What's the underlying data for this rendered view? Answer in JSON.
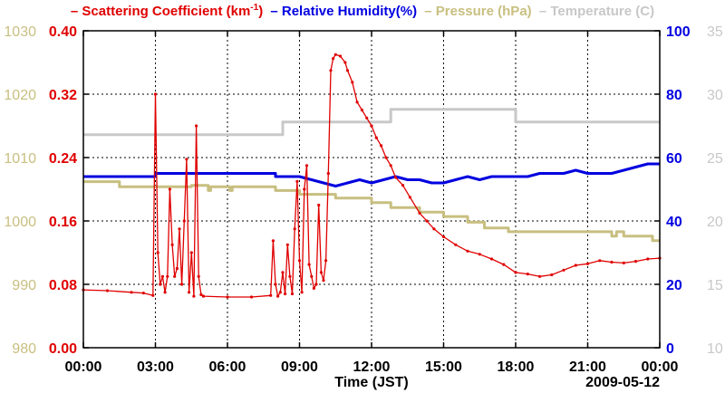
{
  "legend": {
    "scattering": "– Scattering Coefficient (km",
    "scattering_sup": "-1",
    "scattering_end": ")",
    "humidity": "– Relative Humidity(%)",
    "pressure": "– Pressure (hPa)",
    "temperature": "– Temperature (C)"
  },
  "chart_data": {
    "type": "line",
    "title": "",
    "xlabel": "Time (JST)",
    "date_label": "2009-05-12",
    "x_ticks": [
      "00:00",
      "03:00",
      "06:00",
      "09:00",
      "12:00",
      "15:00",
      "18:00",
      "21:00",
      "00:00"
    ],
    "xlim_hours": [
      0,
      24
    ],
    "axes": {
      "scattering": {
        "ylim": [
          0,
          0.4
        ],
        "ticks": [
          "0.00",
          "0.08",
          "0.16",
          "0.24",
          "0.32",
          "0.40"
        ],
        "color": "#e00000"
      },
      "pressure": {
        "ylim": [
          980,
          1030
        ],
        "ticks": [
          "980",
          "990",
          "1000",
          "1010",
          "1020",
          "1030"
        ],
        "color": "#c8bf80"
      },
      "humidity": {
        "ylim": [
          0,
          100
        ],
        "ticks": [
          "0",
          "20",
          "40",
          "60",
          "80",
          "100"
        ],
        "color": "#0000e0"
      },
      "temperature": {
        "ylim": [
          10,
          35
        ],
        "ticks": [
          "10",
          "15",
          "20",
          "25",
          "30",
          "35"
        ],
        "color": "#c8c8c8"
      }
    },
    "series": [
      {
        "name": "Temperature",
        "axis": "temperature",
        "color": "#c8c8c8",
        "points": [
          [
            0,
            26.8
          ],
          [
            8.3,
            26.8
          ],
          [
            8.3,
            27.8
          ],
          [
            12.8,
            27.8
          ],
          [
            12.8,
            28.8
          ],
          [
            18.0,
            28.8
          ],
          [
            18.0,
            27.8
          ],
          [
            24,
            27.8
          ]
        ]
      },
      {
        "name": "Pressure",
        "axis": "pressure",
        "color": "#c8bf80",
        "points": [
          [
            0,
            1006.2
          ],
          [
            1.5,
            1006.2
          ],
          [
            1.5,
            1005.4
          ],
          [
            4.5,
            1005.4
          ],
          [
            4.5,
            1005.6
          ],
          [
            5.2,
            1005.6
          ],
          [
            5.2,
            1004.8
          ],
          [
            5.3,
            1004.8
          ],
          [
            5.3,
            1005.4
          ],
          [
            6.1,
            1005.4
          ],
          [
            6.1,
            1004.8
          ],
          [
            6.2,
            1004.8
          ],
          [
            6.2,
            1005.4
          ],
          [
            8.0,
            1005.4
          ],
          [
            8.0,
            1004.8
          ],
          [
            9.0,
            1004.8
          ],
          [
            9.0,
            1004.2
          ],
          [
            10.5,
            1004.2
          ],
          [
            10.5,
            1003.6
          ],
          [
            12.0,
            1003.6
          ],
          [
            12.0,
            1002.9
          ],
          [
            12.8,
            1002.9
          ],
          [
            12.8,
            1002.1
          ],
          [
            14.0,
            1002.1
          ],
          [
            14.0,
            1001.4
          ],
          [
            15.0,
            1001.4
          ],
          [
            15.0,
            1000.7
          ],
          [
            16.0,
            1000.7
          ],
          [
            16.0,
            999.8
          ],
          [
            16.7,
            999.8
          ],
          [
            16.7,
            998.9
          ],
          [
            17.7,
            998.9
          ],
          [
            17.7,
            998.3
          ],
          [
            22.0,
            998.3
          ],
          [
            22.0,
            997.6
          ],
          [
            22.2,
            997.6
          ],
          [
            22.2,
            998.3
          ],
          [
            22.5,
            998.3
          ],
          [
            22.5,
            997.6
          ],
          [
            23.7,
            997.6
          ],
          [
            23.7,
            996.9
          ],
          [
            24,
            996.9
          ]
        ]
      },
      {
        "name": "Relative Humidity",
        "axis": "humidity",
        "color": "#0000e0",
        "points": [
          [
            0,
            54
          ],
          [
            3.0,
            54
          ],
          [
            3.0,
            55
          ],
          [
            8.0,
            55
          ],
          [
            8.0,
            54
          ],
          [
            9.0,
            54
          ],
          [
            9.5,
            53
          ],
          [
            10.0,
            52
          ],
          [
            10.5,
            51
          ],
          [
            11.0,
            52
          ],
          [
            11.5,
            53
          ],
          [
            12.0,
            52
          ],
          [
            12.5,
            53
          ],
          [
            13.0,
            54
          ],
          [
            13.5,
            53
          ],
          [
            14.0,
            53
          ],
          [
            14.5,
            52
          ],
          [
            15.0,
            52
          ],
          [
            15.5,
            53
          ],
          [
            16.0,
            54
          ],
          [
            16.5,
            53
          ],
          [
            17.0,
            54
          ],
          [
            17.5,
            54
          ],
          [
            18.0,
            54
          ],
          [
            18.5,
            54
          ],
          [
            19.0,
            55
          ],
          [
            19.5,
            55
          ],
          [
            20.0,
            55
          ],
          [
            20.5,
            56
          ],
          [
            21.0,
            55
          ],
          [
            21.5,
            55
          ],
          [
            22.0,
            55
          ],
          [
            22.5,
            56
          ],
          [
            23.0,
            57
          ],
          [
            23.5,
            58
          ],
          [
            24,
            58
          ]
        ]
      },
      {
        "name": "Scattering Coefficient",
        "axis": "scattering",
        "color": "#e00000",
        "markers": true,
        "points": [
          [
            0,
            0.073
          ],
          [
            1.0,
            0.072
          ],
          [
            2.0,
            0.07
          ],
          [
            2.5,
            0.069
          ],
          [
            2.9,
            0.066
          ],
          [
            3.0,
            0.32
          ],
          [
            3.1,
            0.12
          ],
          [
            3.2,
            0.08
          ],
          [
            3.3,
            0.09
          ],
          [
            3.4,
            0.07
          ],
          [
            3.5,
            0.09
          ],
          [
            3.6,
            0.2
          ],
          [
            3.7,
            0.13
          ],
          [
            3.8,
            0.09
          ],
          [
            3.9,
            0.1
          ],
          [
            4.0,
            0.15
          ],
          [
            4.1,
            0.08
          ],
          [
            4.2,
            0.16
          ],
          [
            4.3,
            0.238
          ],
          [
            4.4,
            0.07
          ],
          [
            4.5,
            0.12
          ],
          [
            4.6,
            0.065
          ],
          [
            4.7,
            0.28
          ],
          [
            4.8,
            0.09
          ],
          [
            4.9,
            0.067
          ],
          [
            5.0,
            0.065
          ],
          [
            6.0,
            0.064
          ],
          [
            7.0,
            0.064
          ],
          [
            7.8,
            0.066
          ],
          [
            7.9,
            0.135
          ],
          [
            8.0,
            0.08
          ],
          [
            8.1,
            0.065
          ],
          [
            8.2,
            0.07
          ],
          [
            8.3,
            0.095
          ],
          [
            8.4,
            0.068
          ],
          [
            8.5,
            0.13
          ],
          [
            8.6,
            0.09
          ],
          [
            8.7,
            0.068
          ],
          [
            8.8,
            0.15
          ],
          [
            8.9,
            0.21
          ],
          [
            9.0,
            0.11
          ],
          [
            9.1,
            0.07
          ],
          [
            9.2,
            0.2
          ],
          [
            9.3,
            0.23
          ],
          [
            9.4,
            0.105
          ],
          [
            9.5,
            0.09
          ],
          [
            9.6,
            0.075
          ],
          [
            9.7,
            0.08
          ],
          [
            9.8,
            0.18
          ],
          [
            9.9,
            0.095
          ],
          [
            10.0,
            0.085
          ],
          [
            10.1,
            0.11
          ],
          [
            10.2,
            0.22
          ],
          [
            10.3,
            0.35
          ],
          [
            10.4,
            0.365
          ],
          [
            10.5,
            0.37
          ],
          [
            10.7,
            0.368
          ],
          [
            10.9,
            0.36
          ],
          [
            11.0,
            0.35
          ],
          [
            11.2,
            0.335
          ],
          [
            11.4,
            0.31
          ],
          [
            11.6,
            0.3
          ],
          [
            11.8,
            0.29
          ],
          [
            12.0,
            0.28
          ],
          [
            12.2,
            0.265
          ],
          [
            12.4,
            0.255
          ],
          [
            12.6,
            0.24
          ],
          [
            12.8,
            0.23
          ],
          [
            13.0,
            0.215
          ],
          [
            13.3,
            0.205
          ],
          [
            13.6,
            0.19
          ],
          [
            14.0,
            0.17
          ],
          [
            14.3,
            0.16
          ],
          [
            14.6,
            0.15
          ],
          [
            15.0,
            0.14
          ],
          [
            15.5,
            0.13
          ],
          [
            16.0,
            0.122
          ],
          [
            16.5,
            0.118
          ],
          [
            17.0,
            0.112
          ],
          [
            17.5,
            0.105
          ],
          [
            18.0,
            0.095
          ],
          [
            18.5,
            0.093
          ],
          [
            19.0,
            0.09
          ],
          [
            19.5,
            0.092
          ],
          [
            20.0,
            0.098
          ],
          [
            20.5,
            0.104
          ],
          [
            21.0,
            0.106
          ],
          [
            21.5,
            0.11
          ],
          [
            22.0,
            0.108
          ],
          [
            22.5,
            0.107
          ],
          [
            23.0,
            0.109
          ],
          [
            23.5,
            0.112
          ],
          [
            24,
            0.113
          ]
        ]
      }
    ]
  }
}
